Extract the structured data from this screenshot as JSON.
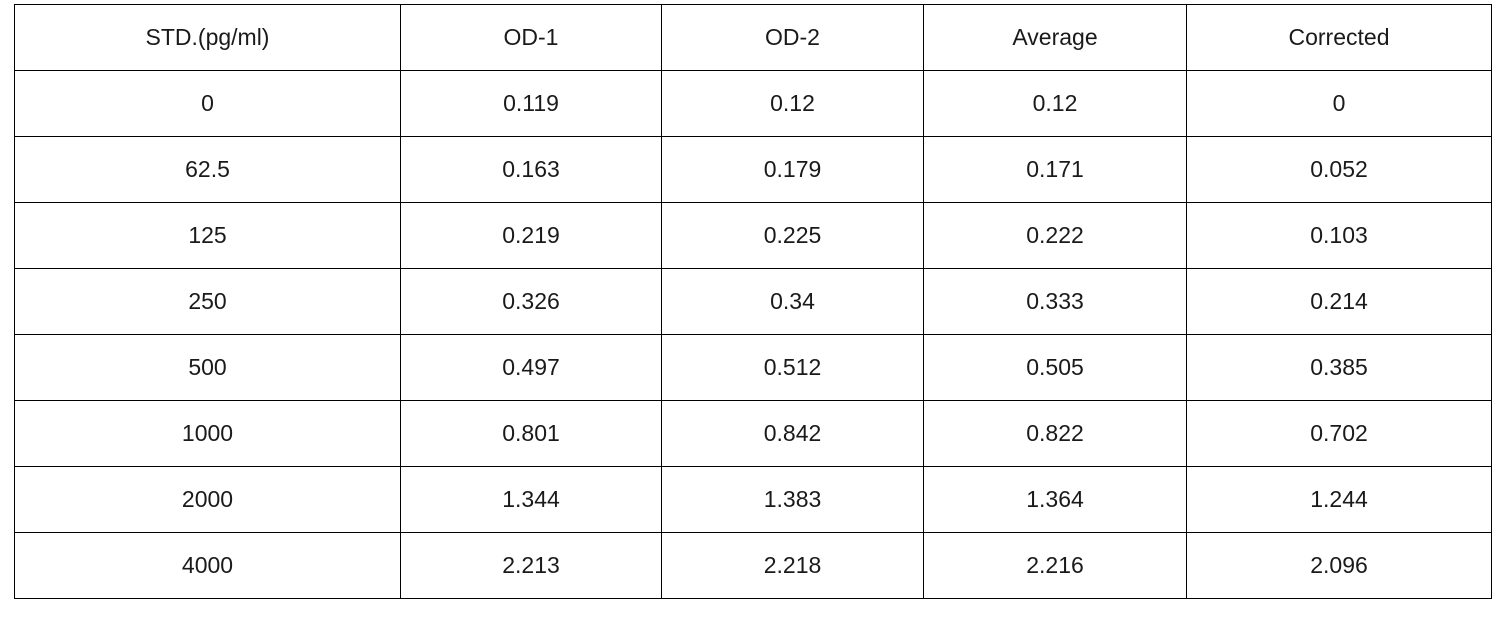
{
  "table": {
    "headers": [
      "STD.(pg/ml)",
      "OD-1",
      "OD-2",
      "Average",
      "Corrected"
    ],
    "rows": [
      [
        "0",
        "0.119",
        "0.12",
        "0.12",
        "0"
      ],
      [
        "62.5",
        "0.163",
        "0.179",
        "0.171",
        "0.052"
      ],
      [
        "125",
        "0.219",
        "0.225",
        "0.222",
        "0.103"
      ],
      [
        "250",
        "0.326",
        "0.34",
        "0.333",
        "0.214"
      ],
      [
        "500",
        "0.497",
        "0.512",
        "0.505",
        "0.385"
      ],
      [
        "1000",
        "0.801",
        "0.842",
        "0.822",
        "0.702"
      ],
      [
        "2000",
        "1.344",
        "1.383",
        "1.364",
        "1.244"
      ],
      [
        "4000",
        "2.213",
        "2.218",
        "2.216",
        "2.096"
      ]
    ]
  }
}
